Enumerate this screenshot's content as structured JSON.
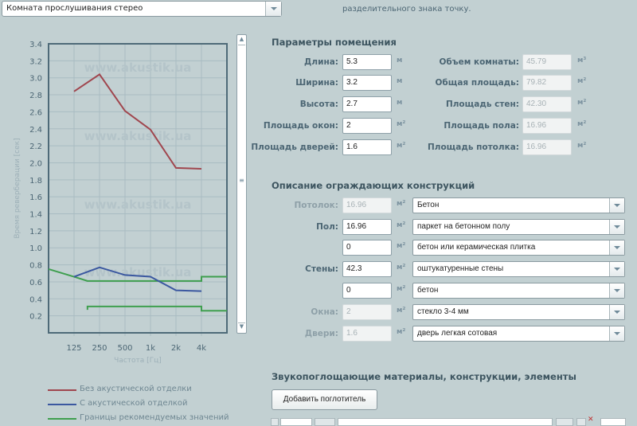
{
  "preset_dropdown": {
    "value": "Комната прослушивания стерео"
  },
  "hint_text": "разделительного знака точку.",
  "room_params": {
    "title": "Параметры помещения",
    "left": [
      {
        "label": "Длина:",
        "value": "5.3",
        "unit": "м"
      },
      {
        "label": "Ширина:",
        "value": "3.2",
        "unit": "м"
      },
      {
        "label": "Высота:",
        "value": "2.7",
        "unit": "м"
      },
      {
        "label": "Площадь окон:",
        "value": "2",
        "unit": "м²"
      },
      {
        "label": "Площадь дверей:",
        "value": "1.6",
        "unit": "м²"
      }
    ],
    "right": [
      {
        "label": "Объем комнаты:",
        "value": "45.79",
        "unit": "м³"
      },
      {
        "label": "Общая площадь:",
        "value": "79.82",
        "unit": "м²"
      },
      {
        "label": "Площадь стен:",
        "value": "42.30",
        "unit": "м²"
      },
      {
        "label": "Площадь пола:",
        "value": "16.96",
        "unit": "м²"
      },
      {
        "label": "Площадь потолка:",
        "value": "16.96",
        "unit": "м²"
      }
    ]
  },
  "constructions": {
    "title": "Описание ограждающих конструкций",
    "rows": [
      {
        "label": "Потолок:",
        "value": "16.96",
        "unit": "м²",
        "material": "Бетон",
        "readonly": true
      },
      {
        "label": "Пол:",
        "value": "16.96",
        "unit": "м²",
        "material": "паркет на бетонном полу",
        "readonly": false
      },
      {
        "label": "",
        "value": "0",
        "unit": "м²",
        "material": "бетон или керамическая плитка",
        "readonly": false
      },
      {
        "label": "Стены:",
        "value": "42.3",
        "unit": "м²",
        "material": "оштукатуренные стены",
        "readonly": false
      },
      {
        "label": "",
        "value": "0",
        "unit": "м²",
        "material": "бетон",
        "readonly": false
      },
      {
        "label": "Окна:",
        "value": "2",
        "unit": "м²",
        "material": "стекло 3-4 мм",
        "readonly": true
      },
      {
        "label": "Двери:",
        "value": "1.6",
        "unit": "м²",
        "material": "дверь легкая сотовая",
        "readonly": true
      }
    ]
  },
  "absorbers": {
    "title": "Звукопоглощающие материалы, конструкции, элементы",
    "add_button": "Добавить поглотитель"
  },
  "watermark": "www.akustik.ua",
  "chart_data": {
    "type": "line",
    "xlabel": "Частота [Гц]",
    "ylabel": "Время реверберации [сек]",
    "x_scale": "log",
    "categories": [
      "125",
      "250",
      "500",
      "1k",
      "2k",
      "4k"
    ],
    "x": [
      125,
      250,
      500,
      1000,
      2000,
      4000
    ],
    "xlim": [
      62.5,
      8000
    ],
    "ylim": [
      0,
      3.4
    ],
    "yticks": [
      "0.2",
      "0.4",
      "0.6",
      "0.8",
      "1.0",
      "1.2",
      "1.4",
      "1.6",
      "1.8",
      "2.0",
      "2.2",
      "2.4",
      "2.6",
      "2.8",
      "3.0",
      "3.2",
      "3.4"
    ],
    "grid": true,
    "legend_position": "bottom",
    "series": [
      {
        "name": "Без акустической отделки",
        "color": "#a0464e",
        "values": [
          2.84,
          3.04,
          2.61,
          2.39,
          1.94,
          1.93
        ]
      },
      {
        "name": "С акустической отделкой",
        "color": "#3b58a0",
        "values": [
          0.66,
          0.77,
          0.68,
          0.66,
          0.5,
          0.49
        ]
      }
    ],
    "bounds": {
      "name": "Границы рекомендуемых значений",
      "color": "#3f9f4f",
      "upper": [
        [
          62.5,
          0.75
        ],
        [
          125,
          0.66
        ],
        [
          180,
          0.61
        ],
        [
          4000,
          0.61
        ],
        [
          4000,
          0.66
        ],
        [
          8000,
          0.66
        ]
      ],
      "lower": [
        [
          180,
          0.27
        ],
        [
          180,
          0.31
        ],
        [
          4000,
          0.31
        ],
        [
          4000,
          0.26
        ],
        [
          8000,
          0.26
        ]
      ]
    }
  }
}
